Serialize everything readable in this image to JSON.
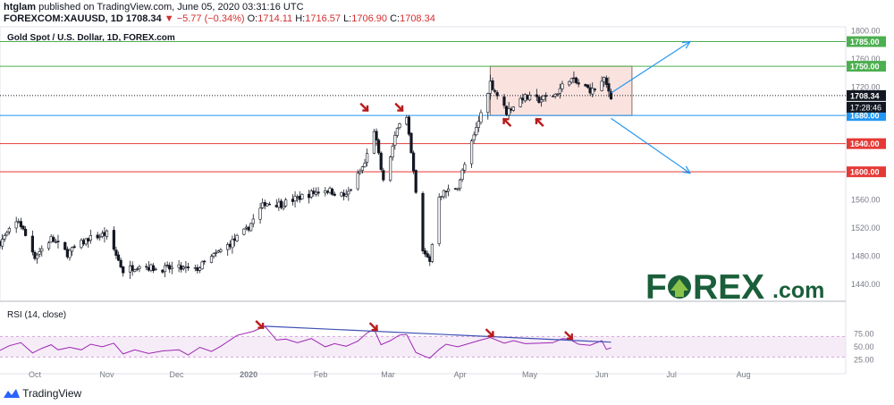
{
  "header": {
    "author": "htglam",
    "published_text": "published on TradingView.com, June 05, 2020 03:31:16 UTC",
    "symbol": "FOREXCOM:XAUUSD, 1D",
    "last": "1708.34",
    "change": "−5.77 (−0.34%)",
    "o_label": "O:",
    "o_value": "1714.11",
    "h_label": "H:",
    "h_value": "1716.57",
    "l_label": "L:",
    "l_value": "1706.90",
    "c_label": "C:",
    "c_value": "1708.34",
    "chart_title": "Gold Spot / U.S. Dollar, 1D, FOREX.com"
  },
  "rsi_label": "RSI (14, close)",
  "logo": {
    "text_pre": "F",
    "text_post": "REX",
    "suffix": ".com"
  },
  "footer": {
    "brand": "TradingView"
  },
  "colors": {
    "green": "#4caf50",
    "red": "#e53935",
    "blue": "#2196f3",
    "rsi": "#9c27b0",
    "arrow": "#b71c1c",
    "logo": "#1a5e3a"
  },
  "chart_data": [
    {
      "type": "candlestick",
      "title": "Gold Spot / U.S. Dollar, 1D, FOREX.com",
      "ylim": [
        1416,
        1806
      ],
      "y_ticks": [
        1440,
        1480,
        1520,
        1560,
        1600,
        1640,
        1680,
        1720,
        1760,
        1800
      ],
      "x_labels": [
        {
          "label": "Oct",
          "date": "2019-10-01"
        },
        {
          "label": "Nov",
          "date": "2019-11-01"
        },
        {
          "label": "Dec",
          "date": "2019-12-01"
        },
        {
          "label": "2020",
          "date": "2020-01-01"
        },
        {
          "label": "Feb",
          "date": "2020-02-01"
        },
        {
          "label": "Mar",
          "date": "2020-03-01"
        },
        {
          "label": "Apr",
          "date": "2020-04-01"
        },
        {
          "label": "May",
          "date": "2020-05-01"
        },
        {
          "label": "Jun",
          "date": "2020-06-01"
        },
        {
          "label": "Jul",
          "date": "2020-07-01"
        },
        {
          "label": "Aug",
          "date": "2020-08-01"
        }
      ],
      "close_path": [
        [
          "2019-09-16",
          1500
        ],
        [
          "2019-09-24",
          1531
        ],
        [
          "2019-10-01",
          1480
        ],
        [
          "2019-10-08",
          1505
        ],
        [
          "2019-10-15",
          1484
        ],
        [
          "2019-10-24",
          1505
        ],
        [
          "2019-11-01",
          1512
        ],
        [
          "2019-11-08",
          1459
        ],
        [
          "2019-11-15",
          1468
        ],
        [
          "2019-11-22",
          1462
        ],
        [
          "2019-12-02",
          1463
        ],
        [
          "2019-12-09",
          1460
        ],
        [
          "2019-12-16",
          1478
        ],
        [
          "2019-12-24",
          1498
        ],
        [
          "2019-12-31",
          1517
        ],
        [
          "2020-01-08",
          1556
        ],
        [
          "2020-01-15",
          1554
        ],
        [
          "2020-01-24",
          1565
        ],
        [
          "2020-02-03",
          1575
        ],
        [
          "2020-02-12",
          1565
        ],
        [
          "2020-02-20",
          1612
        ],
        [
          "2020-02-24",
          1660
        ],
        [
          "2020-02-28",
          1585
        ],
        [
          "2020-03-06",
          1673
        ],
        [
          "2020-03-09",
          1680
        ],
        [
          "2020-03-16",
          1485
        ],
        [
          "2020-03-19",
          1474
        ],
        [
          "2020-03-23",
          1567
        ],
        [
          "2020-03-31",
          1580
        ],
        [
          "2020-04-07",
          1650
        ],
        [
          "2020-04-14",
          1727
        ],
        [
          "2020-04-21",
          1685
        ],
        [
          "2020-04-28",
          1706
        ],
        [
          "2020-05-05",
          1702
        ],
        [
          "2020-05-12",
          1710
        ],
        [
          "2020-05-18",
          1733
        ],
        [
          "2020-05-21",
          1726
        ],
        [
          "2020-05-28",
          1715
        ],
        [
          "2020-06-02",
          1730
        ],
        [
          "2020-06-05",
          1708
        ]
      ],
      "horizontal_levels": [
        {
          "value": 1785.0,
          "label": "1785.00",
          "color": "#4caf50"
        },
        {
          "value": 1750.0,
          "label": "1750.00",
          "color": "#4caf50"
        },
        {
          "value": 1708.34,
          "label": "1708.34",
          "color": "#131722",
          "dotted": true
        },
        {
          "value": 1680.0,
          "label": "1680.00",
          "color": "#2196f3"
        },
        {
          "value": 1640.0,
          "label": "1640.00",
          "color": "#e53935"
        },
        {
          "value": 1600.0,
          "label": "1600.00",
          "color": "#e53935"
        }
      ],
      "countdown": "17:28:46",
      "range_box": {
        "from": "2020-04-14",
        "to": "2020-06-14",
        "top": 1750,
        "bottom": 1680
      },
      "projection_arrows": [
        {
          "from": [
            "2020-06-05",
            1712
          ],
          "to": [
            "2020-07-09",
            1785
          ]
        },
        {
          "from": [
            "2020-06-05",
            1676
          ],
          "to": [
            "2020-07-09",
            1598
          ]
        }
      ],
      "down_markers": [
        {
          "date": "2020-02-20",
          "value": 1691
        },
        {
          "date": "2020-03-06",
          "value": 1691
        }
      ],
      "up_markers": [
        {
          "date": "2020-04-21",
          "value": 1671
        },
        {
          "date": "2020-05-05",
          "value": 1671
        }
      ]
    },
    {
      "type": "line",
      "title": "RSI (14, close)",
      "ylim": [
        22,
        95
      ],
      "y_ticks": [
        25,
        50,
        75
      ],
      "band": [
        30,
        70
      ],
      "series": [
        {
          "name": "RSI (14, close)",
          "points": [
            [
              "2019-09-16",
              43
            ],
            [
              "2019-09-20",
              52
            ],
            [
              "2019-09-25",
              58
            ],
            [
              "2019-09-30",
              38
            ],
            [
              "2019-10-04",
              47
            ],
            [
              "2019-10-08",
              54
            ],
            [
              "2019-10-11",
              44
            ],
            [
              "2019-10-16",
              49
            ],
            [
              "2019-10-21",
              44
            ],
            [
              "2019-10-25",
              55
            ],
            [
              "2019-10-30",
              50
            ],
            [
              "2019-11-04",
              57
            ],
            [
              "2019-11-08",
              36
            ],
            [
              "2019-11-13",
              44
            ],
            [
              "2019-11-19",
              37
            ],
            [
              "2019-11-25",
              42
            ],
            [
              "2019-12-02",
              44
            ],
            [
              "2019-12-06",
              34
            ],
            [
              "2019-12-11",
              49
            ],
            [
              "2019-12-16",
              41
            ],
            [
              "2019-12-20",
              51
            ],
            [
              "2019-12-27",
              72
            ],
            [
              "2020-01-03",
              80
            ],
            [
              "2020-01-08",
              90
            ],
            [
              "2020-01-13",
              63
            ],
            [
              "2020-01-17",
              65
            ],
            [
              "2020-01-22",
              58
            ],
            [
              "2020-01-28",
              66
            ],
            [
              "2020-02-03",
              50
            ],
            [
              "2020-02-07",
              56
            ],
            [
              "2020-02-12",
              51
            ],
            [
              "2020-02-17",
              61
            ],
            [
              "2020-02-21",
              77
            ],
            [
              "2020-02-24",
              84
            ],
            [
              "2020-02-27",
              54
            ],
            [
              "2020-03-02",
              62
            ],
            [
              "2020-03-06",
              73
            ],
            [
              "2020-03-09",
              74
            ],
            [
              "2020-03-13",
              39
            ],
            [
              "2020-03-17",
              31
            ],
            [
              "2020-03-19",
              28
            ],
            [
              "2020-03-23",
              45
            ],
            [
              "2020-03-26",
              55
            ],
            [
              "2020-03-31",
              50
            ],
            [
              "2020-04-03",
              54
            ],
            [
              "2020-04-09",
              62
            ],
            [
              "2020-04-14",
              68
            ],
            [
              "2020-04-20",
              57
            ],
            [
              "2020-04-24",
              62
            ],
            [
              "2020-04-29",
              56
            ],
            [
              "2020-05-05",
              57
            ],
            [
              "2020-05-11",
              58
            ],
            [
              "2020-05-15",
              66
            ],
            [
              "2020-05-18",
              65
            ],
            [
              "2020-05-22",
              55
            ],
            [
              "2020-05-27",
              53
            ],
            [
              "2020-06-01",
              62
            ],
            [
              "2020-06-03",
              45
            ],
            [
              "2020-06-05",
              48
            ]
          ]
        }
      ],
      "trendline": {
        "from": [
          "2020-01-08",
          90
        ],
        "to": [
          "2020-06-05",
          59
        ]
      },
      "down_markers": [
        {
          "date": "2020-01-06",
          "value": 92
        },
        {
          "date": "2020-02-24",
          "value": 88
        },
        {
          "date": "2020-04-14",
          "value": 76
        },
        {
          "date": "2020-05-18",
          "value": 71
        }
      ]
    }
  ]
}
